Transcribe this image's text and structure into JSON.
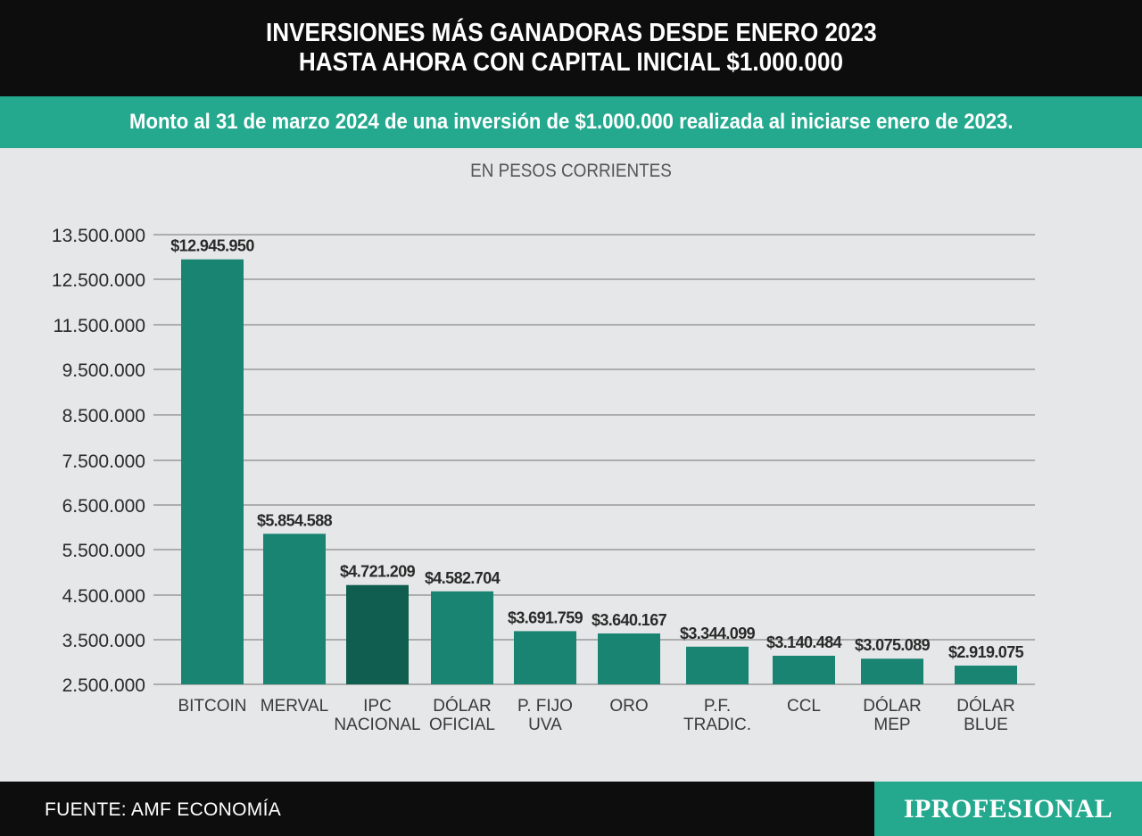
{
  "header": {
    "title_line1": "INVERSIONES MÁS GANADORAS DESDE ENERO 2023",
    "title_line2": "HASTA AHORA CON CAPITAL INICIAL $1.000.000",
    "subtitle": "Monto al 31 de marzo 2024 de una inversión de $1.000.000 realizada al iniciarse enero de 2023."
  },
  "footer": {
    "source": "FUENTE: AMF ECONOMÍA",
    "logo": "IPROFESIONAL"
  },
  "colors": {
    "bar": "#198472",
    "bar_highlight": "#0f5e4f",
    "accent": "#24a98f",
    "grid": "#9a9a9a"
  },
  "chart_data": {
    "type": "bar",
    "units_label": "EN PESOS CORRIENTES",
    "categories": [
      [
        "BITCOIN"
      ],
      [
        "MERVAL"
      ],
      [
        "IPC",
        "NACIONAL"
      ],
      [
        "DÓLAR",
        "OFICIAL"
      ],
      [
        "P. FIJO",
        "UVA"
      ],
      [
        "ORO"
      ],
      [
        "P.F.",
        "TRADIC."
      ],
      [
        "CCL"
      ],
      [
        "DÓLAR",
        "MEP"
      ],
      [
        "DÓLAR",
        "BLUE"
      ]
    ],
    "values": [
      12945950,
      5854588,
      4721209,
      4582704,
      3691759,
      3640167,
      3344099,
      3140484,
      3075089,
      2919075
    ],
    "value_labels": [
      "$12.945.950",
      "$5.854.588",
      "$4.721.209",
      "$4.582.704",
      "$3.691.759",
      "$3.640.167",
      "$3.344.099",
      "$3.140.484",
      "$3.075.089",
      "$2.919.075"
    ],
    "highlight_index": 2,
    "yticks": [
      2500000,
      3500000,
      4500000,
      5500000,
      6500000,
      7500000,
      8500000,
      9500000,
      11500000,
      12500000,
      13500000
    ],
    "ytick_labels": [
      "2.500.000",
      "3.500.000",
      "4.500.000",
      "5.500.000",
      "6.500.000",
      "7.500.000",
      "8.500.000",
      "9.500.000",
      "11.500.000",
      "12.500.000",
      "13.500.000"
    ],
    "grid": true,
    "legend": "none"
  }
}
